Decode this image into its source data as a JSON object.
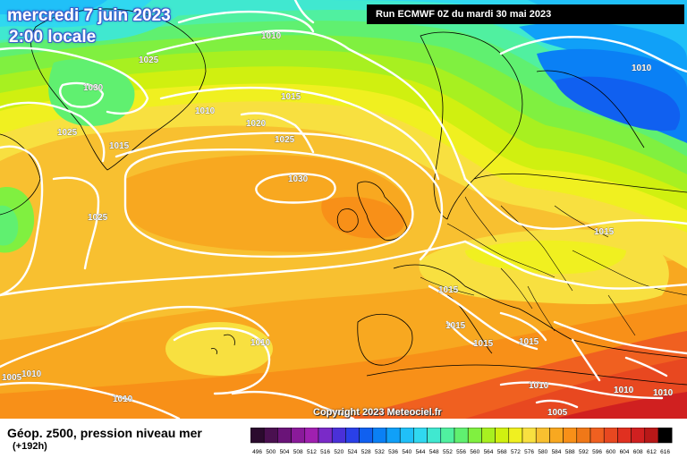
{
  "header": {
    "date": "mercredi 7 juin 2023",
    "time": "2:00 locale",
    "run": "Run ECMWF 0Z du mardi 30 mai 2023"
  },
  "footer": {
    "copyright": "Copyright 2023 Meteociel.fr",
    "legend_title": "Géop. z500, pression niveau mer",
    "legend_sub": "(+192h)"
  },
  "scale": {
    "values": [
      "496",
      "500",
      "504",
      "508",
      "512",
      "516",
      "520",
      "524",
      "528",
      "532",
      "536",
      "540",
      "544",
      "548",
      "552",
      "556",
      "560",
      "564",
      "568",
      "572",
      "576",
      "580",
      "584",
      "588",
      "592",
      "596",
      "600",
      "604",
      "608",
      "612",
      "616"
    ],
    "colors": [
      "#2b0a2e",
      "#4a1050",
      "#6a1478",
      "#8a1a9a",
      "#a020b0",
      "#7a2ac8",
      "#4a30d8",
      "#2a40e8",
      "#1060f0",
      "#0a80f5",
      "#10a0f8",
      "#20c0f8",
      "#30d8f0",
      "#40e8d0",
      "#50f0a0",
      "#60f070",
      "#80f040",
      "#a8f020",
      "#d0f010",
      "#f0f020",
      "#f8e040",
      "#f8c030",
      "#f8a820",
      "#f89018",
      "#f07818",
      "#f06020",
      "#e84820",
      "#e03020",
      "#d02020",
      "#b81818",
      "#000000"
    ]
  },
  "isobars": [
    "1010",
    "1025",
    "1030",
    "1010",
    "1025",
    "1015",
    "1020",
    "1015",
    "1025",
    "1030",
    "1025",
    "1010",
    "1015",
    "1015",
    "1015",
    "1015",
    "1015",
    "1010",
    "1005",
    "1010",
    "1010",
    "1010",
    "1005",
    "1010",
    "1010"
  ]
}
